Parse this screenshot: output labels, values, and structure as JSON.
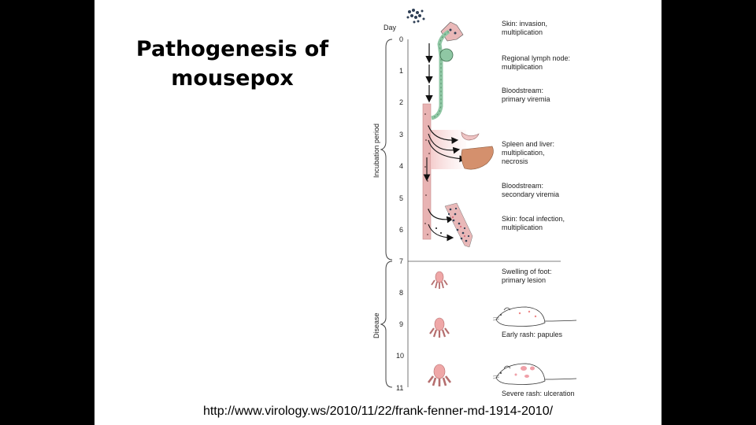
{
  "slide": {
    "title_line1": "Pathogenesis of",
    "title_line2": "mousepox",
    "url": "http://www.virology.ws/2010/11/22/frank-fenner-md-1914-2010/"
  },
  "diagram": {
    "day_label": "Day",
    "days": [
      "0",
      "1",
      "2",
      "3",
      "4",
      "5",
      "6",
      "7",
      "8",
      "9",
      "10",
      "11"
    ],
    "period_incubation": "Incubation period",
    "period_disease": "Disease",
    "stages": [
      {
        "line1": "Skin: invasion,",
        "line2": "multiplication"
      },
      {
        "line1": "Regional lymph node:",
        "line2": "multiplication"
      },
      {
        "line1": "Bloodstream:",
        "line2": "primary viremia"
      },
      {
        "line1": "Spleen and liver:",
        "line2": "multiplication,",
        "line3": "necrosis"
      },
      {
        "line1": "Bloodstream:",
        "line2": "secondary viremia"
      },
      {
        "line1": "Skin: focal infection,",
        "line2": "multiplication"
      },
      {
        "line1": "Swelling of foot:",
        "line2": "primary lesion"
      },
      {
        "line1": "Early rash: papules"
      },
      {
        "line1": "Severe rash: ulceration"
      }
    ],
    "colors": {
      "lymph": "#8fc7a4",
      "blood": "#e8b3b3",
      "liver": "#d4906d",
      "foot": "#efa7a7",
      "virus": "#2f3f55"
    }
  }
}
